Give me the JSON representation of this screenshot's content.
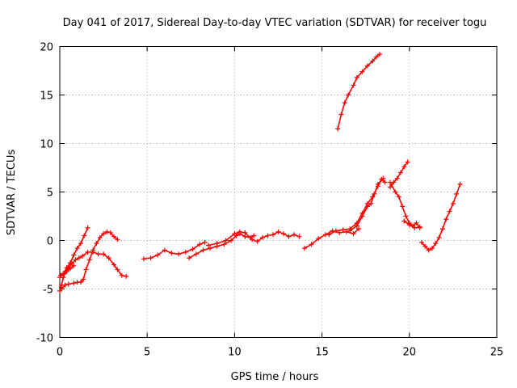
{
  "chart_data": {
    "type": "scatter",
    "title": "Day 041 of 2017, Sidereal Day-to-day VTEC variation (SDTVAR) for receiver togu",
    "xlabel": "GPS time / hours",
    "ylabel": "SDTVAR / TECUs",
    "xlim": [
      0,
      25
    ],
    "ylim": [
      -10,
      20
    ],
    "xticks": [
      "0",
      "5",
      "10",
      "15",
      "20",
      "25"
    ],
    "yticks": [
      "-10",
      "-5",
      "0",
      "5",
      "10",
      "15",
      "20"
    ],
    "grid": true,
    "marker": "plus",
    "color": "#ff0000",
    "segments": [
      [
        [
          0.0,
          -5.2
        ],
        [
          0.1,
          -4.6
        ],
        [
          0.2,
          -3.8
        ],
        [
          0.35,
          -3.2
        ],
        [
          0.5,
          -2.8
        ],
        [
          0.7,
          -2.4
        ],
        [
          0.9,
          -2.0
        ],
        [
          1.1,
          -1.8
        ],
        [
          1.3,
          -1.6
        ],
        [
          1.6,
          -1.2
        ],
        [
          1.9,
          -1.2
        ],
        [
          2.2,
          -1.4
        ],
        [
          2.5,
          -1.4
        ],
        [
          2.8,
          -1.8
        ],
        [
          3.1,
          -2.5
        ],
        [
          3.3,
          -3.0
        ],
        [
          3.55,
          -3.6
        ],
        [
          3.8,
          -3.7
        ]
      ],
      [
        [
          0.1,
          -5.0
        ],
        [
          0.3,
          -4.6
        ],
        [
          0.5,
          -4.5
        ],
        [
          0.8,
          -4.4
        ],
        [
          1.0,
          -4.3
        ],
        [
          1.2,
          -4.3
        ],
        [
          1.35,
          -4.0
        ],
        [
          1.5,
          -3.0
        ],
        [
          1.7,
          -2.0
        ],
        [
          1.9,
          -1.0
        ],
        [
          2.1,
          -0.3
        ],
        [
          2.3,
          0.3
        ],
        [
          2.5,
          0.7
        ],
        [
          2.7,
          0.9
        ],
        [
          2.9,
          0.8
        ],
        [
          3.1,
          0.4
        ],
        [
          3.3,
          0.1
        ]
      ],
      [
        [
          0.0,
          -3.8
        ],
        [
          0.2,
          -3.4
        ],
        [
          0.4,
          -2.8
        ],
        [
          0.6,
          -2.3
        ],
        [
          0.8,
          -1.5
        ],
        [
          1.0,
          -0.8
        ],
        [
          1.2,
          -0.3
        ],
        [
          1.4,
          0.5
        ],
        [
          1.6,
          1.3
        ]
      ],
      [
        [
          0.05,
          -3.6
        ],
        [
          0.2,
          -3.5
        ],
        [
          0.4,
          -3.2
        ],
        [
          0.6,
          -2.9
        ],
        [
          0.8,
          -2.6
        ]
      ],
      [
        [
          4.8,
          -1.9
        ],
        [
          5.2,
          -1.8
        ],
        [
          5.6,
          -1.5
        ],
        [
          6.0,
          -1.0
        ],
        [
          6.4,
          -1.3
        ],
        [
          6.8,
          -1.4
        ],
        [
          7.2,
          -1.2
        ],
        [
          7.6,
          -0.9
        ],
        [
          8.0,
          -0.4
        ],
        [
          8.3,
          -0.2
        ]
      ],
      [
        [
          7.4,
          -1.8
        ],
        [
          7.8,
          -1.4
        ],
        [
          8.2,
          -1.0
        ],
        [
          8.6,
          -0.8
        ],
        [
          9.0,
          -0.6
        ],
        [
          9.4,
          -0.4
        ],
        [
          9.8,
          0.0
        ],
        [
          10.1,
          0.5
        ],
        [
          10.3,
          0.7
        ],
        [
          10.6,
          0.4
        ],
        [
          10.9,
          0.3
        ],
        [
          11.1,
          0.5
        ]
      ],
      [
        [
          8.5,
          -0.5
        ],
        [
          9.0,
          -0.3
        ],
        [
          9.5,
          0.0
        ],
        [
          10.0,
          0.7
        ],
        [
          10.3,
          0.9
        ],
        [
          10.6,
          0.8
        ],
        [
          11.0,
          0.1
        ],
        [
          11.3,
          -0.1
        ],
        [
          11.6,
          0.3
        ],
        [
          11.9,
          0.5
        ],
        [
          12.2,
          0.6
        ],
        [
          12.5,
          0.9
        ],
        [
          12.8,
          0.7
        ],
        [
          13.1,
          0.4
        ],
        [
          13.4,
          0.6
        ],
        [
          13.7,
          0.4
        ]
      ],
      [
        [
          14.0,
          -0.8
        ],
        [
          14.4,
          -0.4
        ],
        [
          14.8,
          0.2
        ],
        [
          15.2,
          0.6
        ],
        [
          15.6,
          1.0
        ],
        [
          16.0,
          0.8
        ],
        [
          16.4,
          0.9
        ],
        [
          16.8,
          0.7
        ],
        [
          17.1,
          1.2
        ]
      ],
      [
        [
          15.4,
          0.6
        ],
        [
          15.8,
          1.0
        ],
        [
          16.2,
          1.1
        ],
        [
          16.6,
          1.2
        ],
        [
          17.0,
          1.8
        ],
        [
          17.3,
          2.8
        ],
        [
          17.6,
          3.8
        ],
        [
          17.9,
          4.5
        ],
        [
          18.2,
          5.6
        ],
        [
          18.4,
          6.3
        ],
        [
          18.6,
          6.0
        ]
      ],
      [
        [
          16.6,
          1.0
        ],
        [
          17.0,
          1.5
        ],
        [
          17.3,
          2.5
        ],
        [
          17.6,
          3.5
        ],
        [
          17.8,
          3.8
        ],
        [
          18.0,
          4.8
        ],
        [
          18.2,
          5.8
        ],
        [
          18.5,
          6.4
        ]
      ],
      [
        [
          15.9,
          11.5
        ],
        [
          16.1,
          13.0
        ],
        [
          16.3,
          14.2
        ],
        [
          16.5,
          15.0
        ],
        [
          16.8,
          16.0
        ],
        [
          17.0,
          16.8
        ],
        [
          17.3,
          17.4
        ],
        [
          17.6,
          18.0
        ],
        [
          17.9,
          18.5
        ],
        [
          18.1,
          18.9
        ],
        [
          18.3,
          19.2
        ]
      ],
      [
        [
          18.9,
          5.5
        ],
        [
          19.1,
          6.0
        ],
        [
          19.3,
          6.4
        ],
        [
          19.5,
          7.0
        ],
        [
          19.7,
          7.6
        ],
        [
          19.9,
          8.1
        ]
      ],
      [
        [
          18.9,
          6.0
        ],
        [
          19.2,
          5.0
        ],
        [
          19.4,
          4.5
        ],
        [
          19.6,
          3.5
        ],
        [
          19.8,
          2.5
        ],
        [
          20.0,
          1.8
        ],
        [
          20.2,
          1.5
        ],
        [
          20.4,
          1.8
        ],
        [
          20.6,
          1.3
        ]
      ],
      [
        [
          19.7,
          2.0
        ],
        [
          20.0,
          1.6
        ],
        [
          20.3,
          1.3
        ],
        [
          20.6,
          1.4
        ]
      ],
      [
        [
          20.7,
          -0.2
        ],
        [
          20.9,
          -0.6
        ],
        [
          21.1,
          -1.0
        ],
        [
          21.3,
          -0.8
        ],
        [
          21.5,
          -0.3
        ],
        [
          21.7,
          0.3
        ],
        [
          21.9,
          1.2
        ],
        [
          22.1,
          2.2
        ],
        [
          22.3,
          3.0
        ],
        [
          22.5,
          3.8
        ],
        [
          22.7,
          4.8
        ],
        [
          22.9,
          5.8
        ]
      ]
    ]
  }
}
